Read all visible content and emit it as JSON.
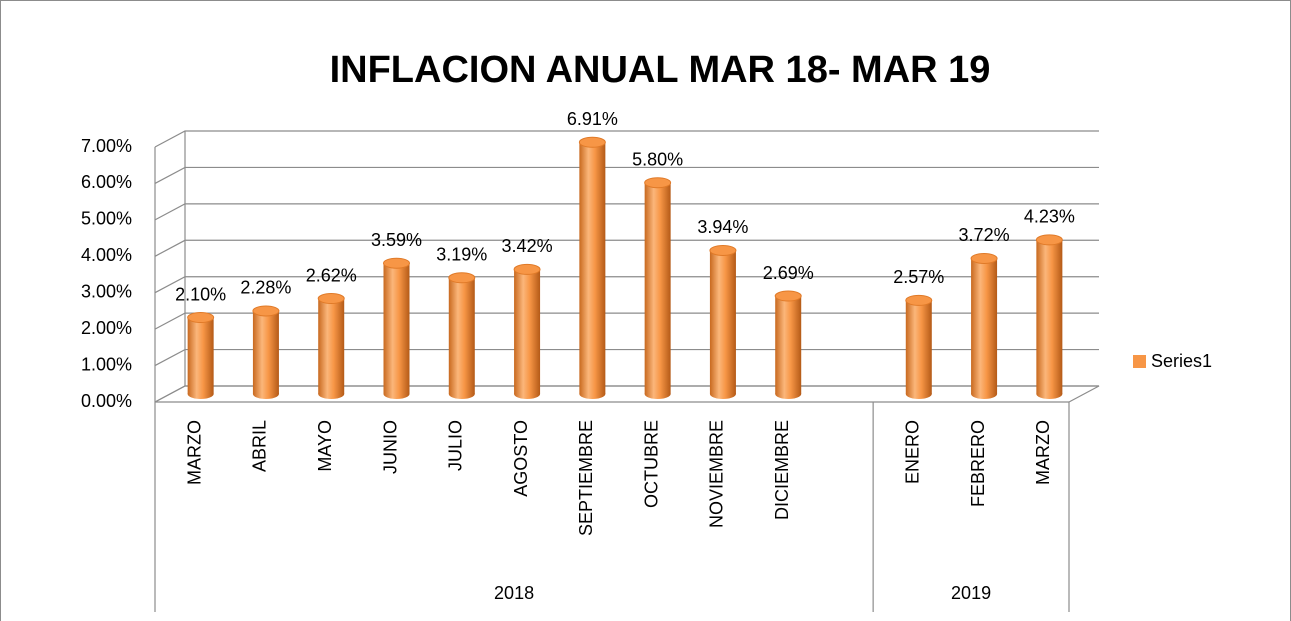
{
  "chart_data": {
    "type": "bar3d",
    "title": "INFLACION ANUAL MAR 18- MAR 19",
    "categories": [
      "MARZO",
      "ABRIL",
      "MAYO",
      "JUNIO",
      "JULIO",
      "AGOSTO",
      "SEPTIEMBRE",
      "OCTUBRE",
      "NOVIEMBRE",
      "DICIEMBRE",
      null,
      "ENERO",
      "FEBRERO",
      "MARZO"
    ],
    "groups": [
      {
        "name": "2018",
        "count": 11
      },
      {
        "name": "2019",
        "count": 3
      }
    ],
    "series": [
      {
        "name": "Series1",
        "color": "#f79646",
        "values": [
          2.1,
          2.28,
          2.62,
          3.59,
          3.19,
          3.42,
          6.91,
          5.8,
          3.94,
          2.69,
          null,
          2.57,
          3.72,
          4.23
        ],
        "value_labels": [
          "2.10%",
          "2.28%",
          "2.62%",
          "3.59%",
          "3.19%",
          "3.42%",
          "6.91%",
          "5.80%",
          "3.94%",
          "2.69%",
          null,
          "2.57%",
          "3.72%",
          "4.23%"
        ]
      }
    ],
    "ylim": [
      0,
      7
    ],
    "yticks": [
      {
        "value": 0,
        "label": "0.00%"
      },
      {
        "value": 1,
        "label": "1.00%"
      },
      {
        "value": 2,
        "label": "2.00%"
      },
      {
        "value": 3,
        "label": "3.00%"
      },
      {
        "value": 4,
        "label": "4.00%"
      },
      {
        "value": 5,
        "label": "5.00%"
      },
      {
        "value": 6,
        "label": "6.00%"
      },
      {
        "value": 7,
        "label": "7.00%"
      }
    ],
    "grid": true,
    "legend": "right"
  }
}
